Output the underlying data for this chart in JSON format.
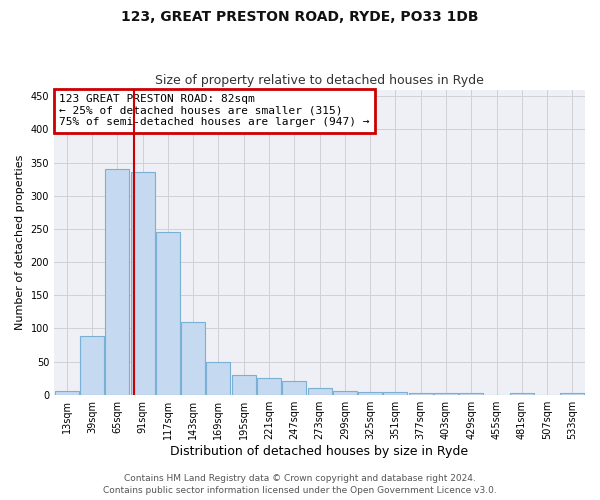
{
  "title1": "123, GREAT PRESTON ROAD, RYDE, PO33 1DB",
  "title2": "Size of property relative to detached houses in Ryde",
  "xlabel": "Distribution of detached houses by size in Ryde",
  "ylabel": "Number of detached properties",
  "bin_labels": [
    "13sqm",
    "39sqm",
    "65sqm",
    "91sqm",
    "117sqm",
    "143sqm",
    "169sqm",
    "195sqm",
    "221sqm",
    "247sqm",
    "273sqm",
    "299sqm",
    "325sqm",
    "351sqm",
    "377sqm",
    "403sqm",
    "429sqm",
    "455sqm",
    "481sqm",
    "507sqm",
    "533sqm"
  ],
  "bar_values": [
    6,
    88,
    340,
    335,
    245,
    110,
    50,
    30,
    25,
    20,
    10,
    5,
    4,
    4,
    3,
    2,
    2,
    0,
    2,
    0,
    2
  ],
  "bar_color": "#c5d9f0",
  "bar_edge_color": "#7ab0d4",
  "property_size_bin": 3,
  "property_line_color": "#cc0000",
  "annotation_line1": "123 GREAT PRESTON ROAD: 82sqm",
  "annotation_line2": "← 25% of detached houses are smaller (315)",
  "annotation_line3": "75% of semi-detached houses are larger (947) →",
  "annotation_box_color": "#cc0000",
  "ylim": [
    0,
    460
  ],
  "yticks": [
    0,
    50,
    100,
    150,
    200,
    250,
    300,
    350,
    400,
    450
  ],
  "grid_color": "#d0d0d8",
  "bg_color": "#eef0f5",
  "footer1": "Contains HM Land Registry data © Crown copyright and database right 2024.",
  "footer2": "Contains public sector information licensed under the Open Government Licence v3.0.",
  "title1_fontsize": 10,
  "title2_fontsize": 9,
  "xlabel_fontsize": 9,
  "ylabel_fontsize": 8,
  "tick_fontsize": 7,
  "annotation_fontsize": 8,
  "footer_fontsize": 6.5
}
